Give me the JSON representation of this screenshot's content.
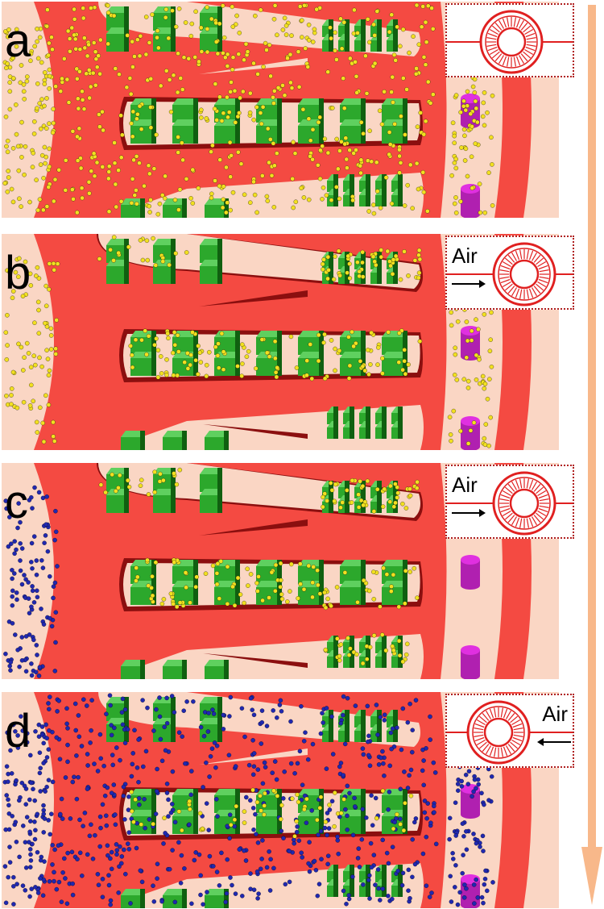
{
  "panels": [
    {
      "label": "a",
      "air": "",
      "air_dir": "none",
      "flow_filled": true,
      "particles": "yellow"
    },
    {
      "label": "b",
      "air": "Air",
      "air_dir": "right",
      "flow_filled": false,
      "particles": "yellow"
    },
    {
      "label": "c",
      "air": "Air",
      "air_dir": "right",
      "flow_filled": false,
      "particles": "yellow-blue"
    },
    {
      "label": "d",
      "air": "Air",
      "air_dir": "left",
      "flow_filled": true,
      "particles": "blue"
    }
  ],
  "colors": {
    "channel": "#f44a42",
    "channel_dark": "#8b0f0f",
    "background": "#fad6c4",
    "pillar": "#2ca82c",
    "pillar_dark": "#106010",
    "magenta": "#e030e0",
    "particle_yellow": "#f2e020",
    "particle_blue": "#2028b0",
    "timeline": "#f8b88a",
    "inset_border": "#b02020"
  }
}
